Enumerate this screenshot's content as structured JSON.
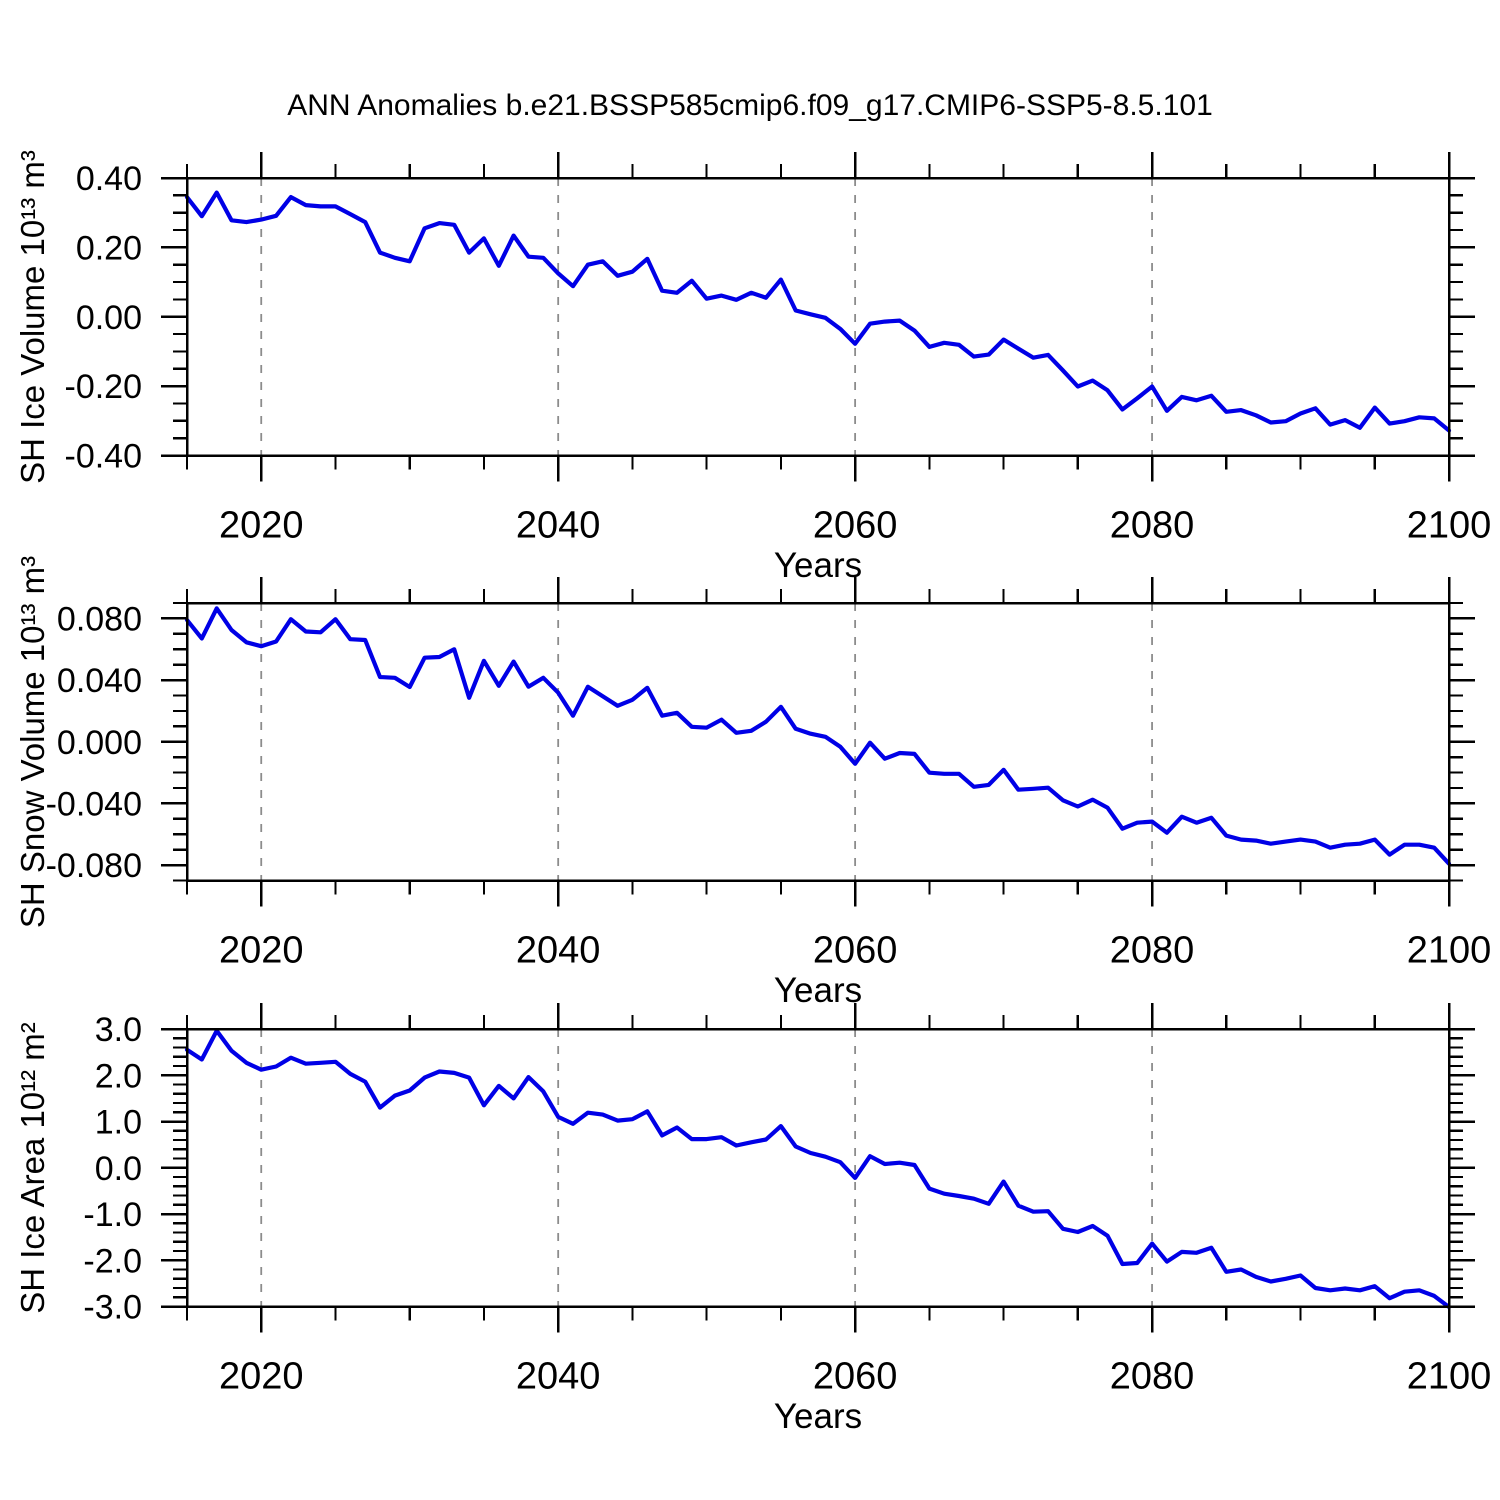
{
  "title": "ANN Anomalies b.e21.BSSP585cmip6.f09_g17.CMIP6-SSP5-8.5.101",
  "figure": {
    "background": "#ffffff",
    "frame_color": "#000000",
    "grid_color": "#8c8c8c",
    "text_color": "#000000",
    "line_color": "#0000e6"
  },
  "chart_data": [
    {
      "name": "sh-ice-volume",
      "type": "line",
      "ylabel": "SH Ice Volume 10¹³ m³",
      "xlabel": "Years",
      "line_color": "#0000e6",
      "xlim": [
        2015,
        2100
      ],
      "ylim": [
        -0.4,
        0.4
      ],
      "xticks": [
        2020,
        2040,
        2060,
        2080,
        2100
      ],
      "xtick_labels": [
        "2020",
        "2040",
        "2060",
        "2080",
        "2100"
      ],
      "x_minor_step": 5,
      "yticks": [
        0.4,
        0.2,
        0.0,
        -0.2,
        -0.4
      ],
      "ytick_labels": [
        "0.40",
        "0.20",
        "0.00",
        "-0.20",
        "-0.40"
      ],
      "y_minor_step": 0.05,
      "grid_x": [
        2020,
        2040,
        2060,
        2080
      ],
      "grid_on": true,
      "legend": "none",
      "x_start_year": 2015,
      "x_step": 1,
      "values": [
        0.345,
        0.29,
        0.358,
        0.278,
        0.273,
        0.28,
        0.291,
        0.345,
        0.322,
        0.318,
        0.318,
        0.296,
        0.273,
        0.185,
        0.17,
        0.16,
        0.255,
        0.27,
        0.265,
        0.185,
        0.226,
        0.147,
        0.234,
        0.173,
        0.17,
        0.125,
        0.088,
        0.15,
        0.16,
        0.118,
        0.13,
        0.167,
        0.075,
        0.069,
        0.104,
        0.052,
        0.061,
        0.049,
        0.069,
        0.055,
        0.107,
        0.018,
        0.007,
        -0.003,
        -0.035,
        -0.078,
        -0.02,
        -0.014,
        -0.011,
        -0.04,
        -0.087,
        -0.075,
        -0.081,
        -0.115,
        -0.109,
        -0.066,
        -0.092,
        -0.118,
        -0.11,
        -0.155,
        -0.201,
        -0.184,
        -0.212,
        -0.267,
        -0.235,
        -0.201,
        -0.271,
        -0.231,
        -0.241,
        -0.228,
        -0.274,
        -0.269,
        -0.284,
        -0.305,
        -0.301,
        -0.279,
        -0.264,
        -0.311,
        -0.298,
        -0.32,
        -0.262,
        -0.308,
        -0.301,
        -0.29,
        -0.293,
        -0.328
      ]
    },
    {
      "name": "sh-snow-volume",
      "type": "line",
      "ylabel": "SH Snow Volume 10¹³ m³",
      "xlabel": "Years",
      "line_color": "#0000e6",
      "xlim": [
        2015,
        2100
      ],
      "ylim": [
        -0.09,
        0.09
      ],
      "xticks": [
        2020,
        2040,
        2060,
        2080,
        2100
      ],
      "xtick_labels": [
        "2020",
        "2040",
        "2060",
        "2080",
        "2100"
      ],
      "x_minor_step": 5,
      "yticks": [
        0.08,
        0.04,
        0.0,
        -0.04,
        -0.08
      ],
      "ytick_labels": [
        "0.080",
        "0.040",
        "0.000",
        "-0.040",
        "-0.080"
      ],
      "y_minor_step": 0.01,
      "grid_x": [
        2020,
        2040,
        2060,
        2080
      ],
      "grid_on": true,
      "legend": "none",
      "x_start_year": 2015,
      "x_step": 1,
      "values": [
        0.079,
        0.067,
        0.0865,
        0.0725,
        0.0645,
        0.062,
        0.065,
        0.0795,
        0.0715,
        0.071,
        0.0795,
        0.0665,
        0.066,
        0.042,
        0.0415,
        0.0355,
        0.0545,
        0.055,
        0.06,
        0.0285,
        0.0525,
        0.0363,
        0.052,
        0.0357,
        0.0415,
        0.0318,
        0.0169,
        0.0357,
        0.0295,
        0.0233,
        0.0272,
        0.035,
        0.0169,
        0.0188,
        0.0097,
        0.0091,
        0.0143,
        0.0058,
        0.0071,
        0.013,
        0.0227,
        0.0084,
        0.0052,
        0.0032,
        -0.0032,
        -0.0143,
        -0.0006,
        -0.011,
        -0.0073,
        -0.0079,
        -0.0201,
        -0.0208,
        -0.0208,
        -0.0292,
        -0.028,
        -0.0182,
        -0.0311,
        -0.0305,
        -0.0298,
        -0.038,
        -0.042,
        -0.0376,
        -0.0428,
        -0.0564,
        -0.0525,
        -0.0518,
        -0.059,
        -0.0486,
        -0.0525,
        -0.0493,
        -0.0609,
        -0.0635,
        -0.0641,
        -0.0661,
        -0.0648,
        -0.0635,
        -0.0648,
        -0.0687,
        -0.0668,
        -0.0661,
        -0.0635,
        -0.0732,
        -0.0668,
        -0.0668,
        -0.0687,
        -0.0791
      ]
    },
    {
      "name": "sh-ice-area",
      "type": "line",
      "ylabel": "SH Ice Area 10¹² m²",
      "xlabel": "Years",
      "line_color": "#0000e6",
      "xlim": [
        2015,
        2100
      ],
      "ylim": [
        -3.0,
        3.0
      ],
      "xticks": [
        2020,
        2040,
        2060,
        2080,
        2100
      ],
      "xtick_labels": [
        "2020",
        "2040",
        "2060",
        "2080",
        "2100"
      ],
      "x_minor_step": 5,
      "yticks": [
        3.0,
        2.0,
        1.0,
        0.0,
        -1.0,
        -2.0,
        -3.0
      ],
      "ytick_labels": [
        "3.0",
        "2.0",
        "1.0",
        "0.0",
        "-1.0",
        "-2.0",
        "-3.0"
      ],
      "y_minor_step": 0.2,
      "grid_x": [
        2020,
        2040,
        2060,
        2080
      ],
      "grid_on": true,
      "legend": "none",
      "x_start_year": 2015,
      "x_step": 1,
      "values": [
        2.55,
        2.34,
        2.96,
        2.53,
        2.27,
        2.12,
        2.19,
        2.38,
        2.25,
        2.27,
        2.29,
        2.03,
        1.86,
        1.3,
        1.56,
        1.67,
        1.95,
        2.08,
        2.05,
        1.95,
        1.35,
        1.77,
        1.5,
        1.96,
        1.65,
        1.1,
        0.95,
        1.19,
        1.15,
        1.02,
        1.05,
        1.22,
        0.7,
        0.87,
        0.62,
        0.62,
        0.66,
        0.48,
        0.55,
        0.61,
        0.9,
        0.46,
        0.32,
        0.24,
        0.12,
        -0.22,
        0.25,
        0.08,
        0.11,
        0.06,
        -0.45,
        -0.56,
        -0.61,
        -0.67,
        -0.78,
        -0.3,
        -0.82,
        -0.95,
        -0.94,
        -1.32,
        -1.39,
        -1.26,
        -1.47,
        -2.08,
        -2.06,
        -1.64,
        -2.03,
        -1.82,
        -1.84,
        -1.73,
        -2.25,
        -2.2,
        -2.36,
        -2.46,
        -2.4,
        -2.33,
        -2.6,
        -2.65,
        -2.61,
        -2.65,
        -2.56,
        -2.82,
        -2.68,
        -2.65,
        -2.77,
        -3.01
      ]
    }
  ]
}
